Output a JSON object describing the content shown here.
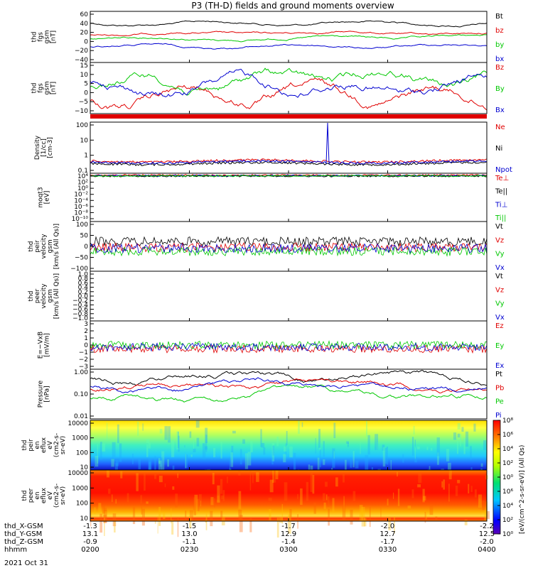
{
  "title": "P3 (TH-D) fields and ground moments overview",
  "footer_date": "2021 Oct 31",
  "ephemeris": {
    "rows": [
      {
        "label": "thd_X-GSM",
        "values": [
          "-1.3",
          "-1.5",
          "-1.7",
          "-2.0",
          "-2.2"
        ]
      },
      {
        "label": "thd_Y-GSM",
        "values": [
          "13.1",
          "13.0",
          "12.9",
          "12.7",
          "12.5"
        ]
      },
      {
        "label": "thd_Z-GSM",
        "values": [
          "-0.9",
          "-1.1",
          "-1.4",
          "-1.7",
          "-2.0"
        ]
      },
      {
        "label": "hhmm",
        "values": [
          "0200",
          "0230",
          "0300",
          "0330",
          "0400"
        ]
      }
    ]
  },
  "colorbar": {
    "ticks": [
      "10⁰",
      "10²",
      "10⁴",
      "10⁶",
      "10⁰",
      "10²",
      "10⁴",
      "10⁶",
      "10⁸"
    ],
    "label": "[eV/(cm2-s-sr-eV)]",
    "label2": "[eV/(cm^2-s-sr-eV)] (All Qs)"
  },
  "chart_data": [
    {
      "id": "fgs",
      "type": "line",
      "ylabel": [
        "thd",
        "fgs",
        "gsm",
        "[nT]"
      ],
      "yticks": [
        "60",
        "40",
        "20",
        "0",
        "−20",
        "−40"
      ],
      "series": [
        {
          "name": "Bt",
          "color": "#000000"
        },
        {
          "name": "bz",
          "color": "#e00000"
        },
        {
          "name": "by",
          "color": "#00c800"
        },
        {
          "name": "bx",
          "color": "#0000d0"
        }
      ]
    },
    {
      "id": "fgs-zoom",
      "type": "line",
      "ylabel": [
        "thd",
        "fgs",
        "gsm",
        "[nT]"
      ],
      "yticks": [
        "15",
        "10",
        "5",
        "0",
        "−5",
        "−10"
      ],
      "series": [
        {
          "name": "Bz",
          "color": "#e00000"
        },
        {
          "name": "By",
          "color": "#00c800"
        },
        {
          "name": "Bx",
          "color": "#0000d0"
        }
      ]
    },
    {
      "id": "density",
      "type": "line",
      "ylabel": [
        "Density",
        "[1/cc]",
        "[cm-3]"
      ],
      "yticks": [
        "100",
        "10",
        "1",
        "0.1"
      ],
      "series": [
        {
          "name": "Ne",
          "color": "#e00000"
        },
        {
          "name": "Ni",
          "color": "#000000"
        },
        {
          "name": "Npot",
          "color": "#0000d0"
        }
      ]
    },
    {
      "id": "temperature",
      "type": "line",
      "ylabel": [
        "moqt3",
        "[eV]"
      ],
      "yticks": [
        "10⁴",
        "10²",
        "10⁰",
        "10⁻²",
        "10⁻⁴",
        "10⁻⁶",
        "10⁻⁸",
        "10⁻¹⁰"
      ],
      "series": [
        {
          "name": "Te⊥",
          "color": "#e00000"
        },
        {
          "name": "Te||",
          "color": "#000000"
        },
        {
          "name": "Ti⊥",
          "color": "#0000d0"
        },
        {
          "name": "Ti||",
          "color": "#00c800"
        }
      ]
    },
    {
      "id": "peir-velocity",
      "type": "line",
      "ylabel": [
        "thd",
        "peir",
        "velocity",
        "gsm",
        "[km/s (All Qs)]"
      ],
      "yticks": [
        "100",
        "50",
        "0",
        "−50",
        "−100"
      ],
      "series": [
        {
          "name": "Vt",
          "color": "#000000"
        },
        {
          "name": "Vz",
          "color": "#e00000"
        },
        {
          "name": "Vy",
          "color": "#00c800"
        },
        {
          "name": "Vx",
          "color": "#0000d0"
        }
      ]
    },
    {
      "id": "peer-velocity",
      "type": "line",
      "ylabel": [
        "thd",
        "peer",
        "velocity",
        "gsm",
        "[km/s (All Qs)]"
      ],
      "yticks": [
        "1.0",
        "0.8",
        "0.6",
        "0.4",
        "0.2",
        "0.0",
        "−0.2",
        "−0.4",
        "−0.6",
        "−0.8",
        "−1.0"
      ],
      "series": [
        {
          "name": "Vt",
          "color": "#000000"
        },
        {
          "name": "Vz",
          "color": "#e00000"
        },
        {
          "name": "Vy",
          "color": "#00c800"
        },
        {
          "name": "Vx",
          "color": "#0000d0"
        }
      ]
    },
    {
      "id": "efield",
      "type": "line",
      "ylabel": [
        "E=−VxB",
        "[mV/m]"
      ],
      "yticks": [
        "3",
        "2",
        "1",
        "0",
        "−1",
        "−2",
        "−3"
      ],
      "series": [
        {
          "name": "Ez",
          "color": "#e00000"
        },
        {
          "name": "Ey",
          "color": "#00c800"
        },
        {
          "name": "Ex",
          "color": "#0000d0"
        }
      ]
    },
    {
      "id": "pressure",
      "type": "line",
      "ylabel": [
        "Pressure",
        "[nPa]"
      ],
      "yticks": [
        "1.00",
        "0.10",
        "0.01"
      ],
      "series": [
        {
          "name": "Pt",
          "color": "#000000"
        },
        {
          "name": "Pb",
          "color": "#e00000"
        },
        {
          "name": "Pe",
          "color": "#00c800"
        },
        {
          "name": "Pi",
          "color": "#0000d0"
        }
      ]
    },
    {
      "id": "peir-eflux",
      "type": "heatmap",
      "ylabel": [
        "thd",
        "peir",
        "en",
        "eflux",
        "eV",
        "(cm2-s-",
        "sr-eV)"
      ],
      "yticks": [
        "10000",
        "1000",
        "100",
        "10"
      ]
    },
    {
      "id": "peer-eflux",
      "type": "heatmap",
      "ylabel": [
        "thd",
        "peer",
        "en",
        "eflux",
        "eV",
        "(cm2-s-",
        "sr-eV)"
      ],
      "yticks": [
        "10000",
        "1000",
        "100",
        "10"
      ]
    }
  ]
}
